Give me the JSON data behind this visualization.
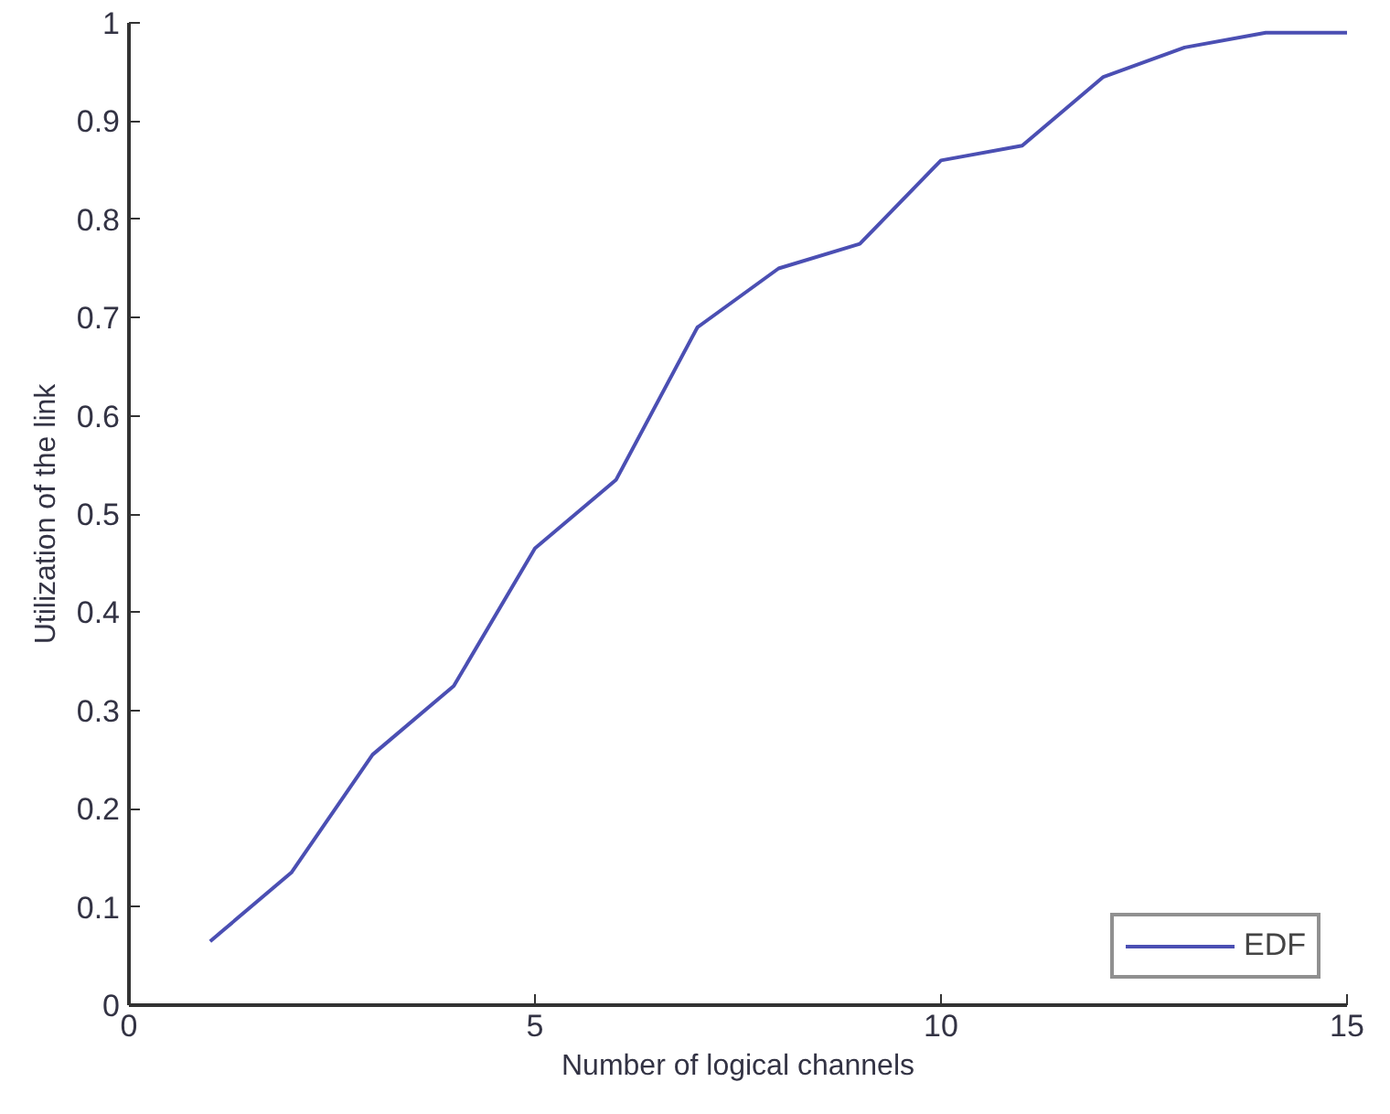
{
  "chart_data": {
    "type": "line",
    "xlabel": "Number of logical channels",
    "ylabel": "Utilization of the link",
    "x": [
      1,
      2,
      3,
      4,
      5,
      6,
      7,
      8,
      9,
      10,
      11,
      12,
      13,
      14,
      15
    ],
    "series": [
      {
        "name": "EDF",
        "color": "#4b4fb3",
        "values": [
          0.065,
          0.135,
          0.255,
          0.325,
          0.465,
          0.535,
          0.69,
          0.75,
          0.775,
          0.86,
          0.875,
          0.945,
          0.975,
          0.99,
          0.99
        ]
      }
    ],
    "xlim": [
      0,
      15
    ],
    "ylim": [
      0,
      1
    ],
    "xticks": [
      0,
      5,
      10,
      15
    ],
    "yticks": [
      0,
      0.1,
      0.2,
      0.3,
      0.4,
      0.5,
      0.6,
      0.7,
      0.8,
      0.9,
      1
    ],
    "grid": false,
    "legend": "bottom right",
    "marker": "none",
    "line_style": "solid"
  }
}
